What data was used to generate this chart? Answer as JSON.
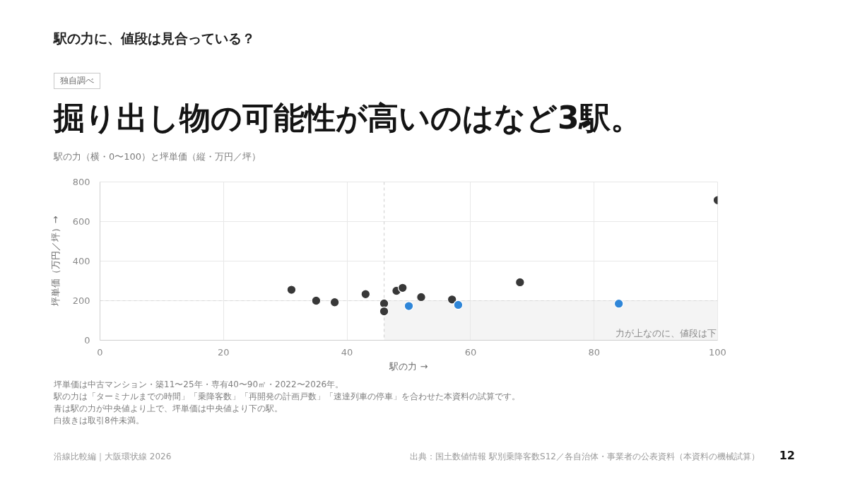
{
  "chart_data": {
    "type": "scatter",
    "title": "掘り出し物の可能性が高いのはなど3駅。",
    "subtitle": "駅の力（横・0〜100）と坪単価（縦・万円／坪）",
    "xlabel": "駅の力 →",
    "ylabel": "坪単価（万円／坪）→",
    "series": [
      {
        "color": "#383838",
        "x": [
          31,
          35,
          38,
          43,
          46,
          46,
          48,
          49,
          52,
          57,
          68,
          100
        ],
        "values": [
          255,
          200,
          192,
          233,
          186,
          146,
          250,
          265,
          218,
          206,
          293,
          708
        ]
      },
      {
        "color": "#2f86d8",
        "x": [
          50,
          58,
          84
        ],
        "values": [
          173,
          179,
          185
        ]
      }
    ],
    "xlim": [
      0,
      100
    ],
    "ylim": [
      0,
      800
    ],
    "xticks": [
      0,
      20,
      40,
      60,
      80,
      100
    ],
    "yticks": [
      0,
      200,
      400,
      600,
      800
    ],
    "grid": true,
    "marker": "circle",
    "ref_lines": [
      {
        "axis": "x",
        "value": 46,
        "color": "#d4d4d4",
        "line_style": "dashed"
      },
      {
        "axis": "y",
        "value": 200,
        "color": "#d9d9d9",
        "line_style": "dashed"
      }
    ],
    "bands": [
      {
        "axis": "x",
        "from": 46,
        "to": 100,
        "label": "力が上なのに、値段は下",
        "color": "#f4f4f4"
      }
    ],
    "annotations": [
      "駅の力に、値段は見合っている？",
      "独自調べ",
      "坪単価は中古マンション・築11〜25年・専有40〜90㎡・2022〜2026年。",
      "駅の力は「ターミナルまでの時間」「乗降客数」「再開発の計画戸数」「速達列車の停車」を合わせた本資料の試算です。",
      "青は駅の力が中央値より上で、坪単価は中央値より下の駅。",
      "白抜きは取引8件未満。",
      "沿線比較編｜大阪環状線 2026",
      "出典：国土数値情報 駅別乗降客数S12／各自治体・事業者の公表資料（本資料の機械試算）",
      "12"
    ]
  }
}
